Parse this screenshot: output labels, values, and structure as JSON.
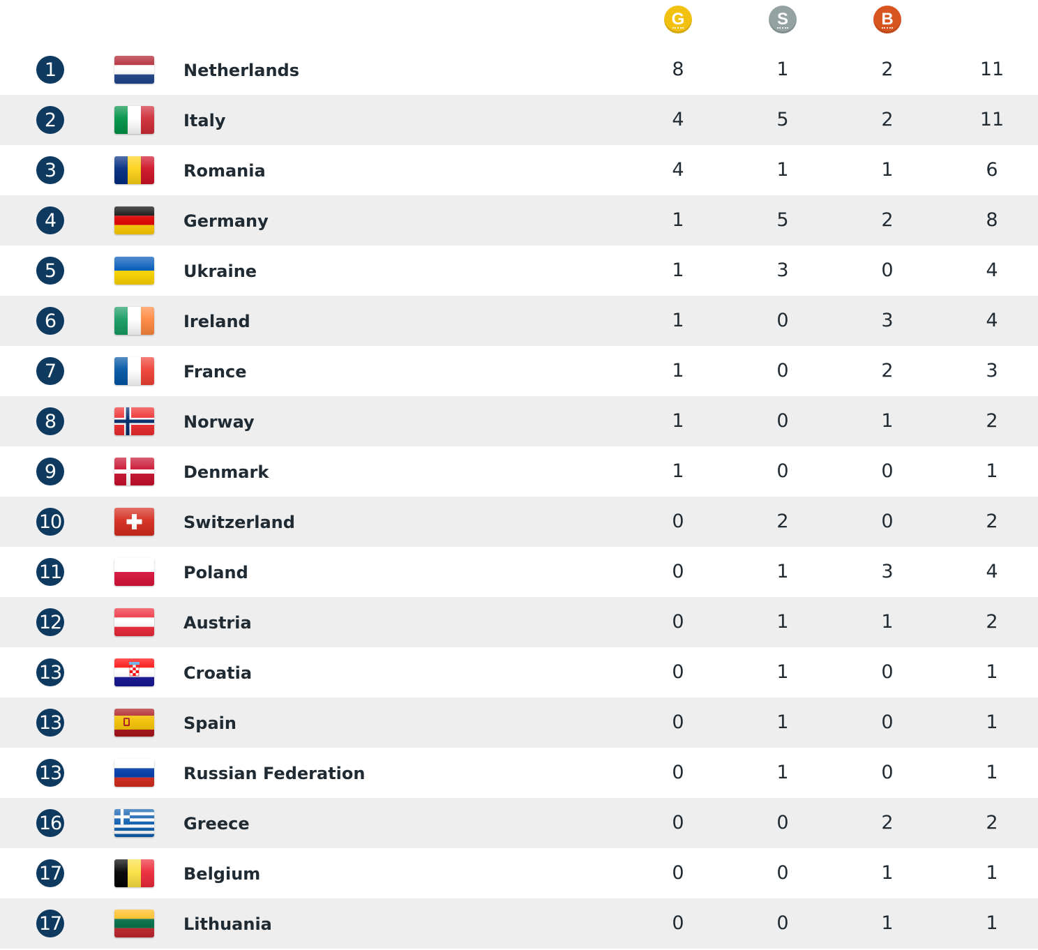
{
  "header": {
    "gold_label": "G",
    "silver_label": "S",
    "bronze_label": "B",
    "colors": {
      "gold": "#f2c00f",
      "silver": "#94a3a2",
      "bronze": "#d8541f",
      "rank_badge": "#0d3a5e",
      "row_alt": "#eeeeee"
    }
  },
  "rows": [
    {
      "rank": "1",
      "country": "Netherlands",
      "flag": "netherlands-flag-icon",
      "gold": "8",
      "silver": "1",
      "bronze": "2",
      "total": "11"
    },
    {
      "rank": "2",
      "country": "Italy",
      "flag": "italy-flag-icon",
      "gold": "4",
      "silver": "5",
      "bronze": "2",
      "total": "11"
    },
    {
      "rank": "3",
      "country": "Romania",
      "flag": "romania-flag-icon",
      "gold": "4",
      "silver": "1",
      "bronze": "1",
      "total": "6"
    },
    {
      "rank": "4",
      "country": "Germany",
      "flag": "germany-flag-icon",
      "gold": "1",
      "silver": "5",
      "bronze": "2",
      "total": "8"
    },
    {
      "rank": "5",
      "country": "Ukraine",
      "flag": "ukraine-flag-icon",
      "gold": "1",
      "silver": "3",
      "bronze": "0",
      "total": "4"
    },
    {
      "rank": "6",
      "country": "Ireland",
      "flag": "ireland-flag-icon",
      "gold": "1",
      "silver": "0",
      "bronze": "3",
      "total": "4"
    },
    {
      "rank": "7",
      "country": "France",
      "flag": "france-flag-icon",
      "gold": "1",
      "silver": "0",
      "bronze": "2",
      "total": "3"
    },
    {
      "rank": "8",
      "country": "Norway",
      "flag": "norway-flag-icon",
      "gold": "1",
      "silver": "0",
      "bronze": "1",
      "total": "2"
    },
    {
      "rank": "9",
      "country": "Denmark",
      "flag": "denmark-flag-icon",
      "gold": "1",
      "silver": "0",
      "bronze": "0",
      "total": "1"
    },
    {
      "rank": "10",
      "country": "Switzerland",
      "flag": "switzerland-flag-icon",
      "gold": "0",
      "silver": "2",
      "bronze": "0",
      "total": "2"
    },
    {
      "rank": "11",
      "country": "Poland",
      "flag": "poland-flag-icon",
      "gold": "0",
      "silver": "1",
      "bronze": "3",
      "total": "4"
    },
    {
      "rank": "12",
      "country": "Austria",
      "flag": "austria-flag-icon",
      "gold": "0",
      "silver": "1",
      "bronze": "1",
      "total": "2"
    },
    {
      "rank": "13",
      "country": "Croatia",
      "flag": "croatia-flag-icon",
      "gold": "0",
      "silver": "1",
      "bronze": "0",
      "total": "1"
    },
    {
      "rank": "13",
      "country": "Spain",
      "flag": "spain-flag-icon",
      "gold": "0",
      "silver": "1",
      "bronze": "0",
      "total": "1"
    },
    {
      "rank": "13",
      "country": "Russian Federation",
      "flag": "russia-flag-icon",
      "gold": "0",
      "silver": "1",
      "bronze": "0",
      "total": "1"
    },
    {
      "rank": "16",
      "country": "Greece",
      "flag": "greece-flag-icon",
      "gold": "0",
      "silver": "0",
      "bronze": "2",
      "total": "2"
    },
    {
      "rank": "17",
      "country": "Belgium",
      "flag": "belgium-flag-icon",
      "gold": "0",
      "silver": "0",
      "bronze": "1",
      "total": "1"
    },
    {
      "rank": "17",
      "country": "Lithuania",
      "flag": "lithuania-flag-icon",
      "gold": "0",
      "silver": "0",
      "bronze": "1",
      "total": "1"
    }
  ]
}
